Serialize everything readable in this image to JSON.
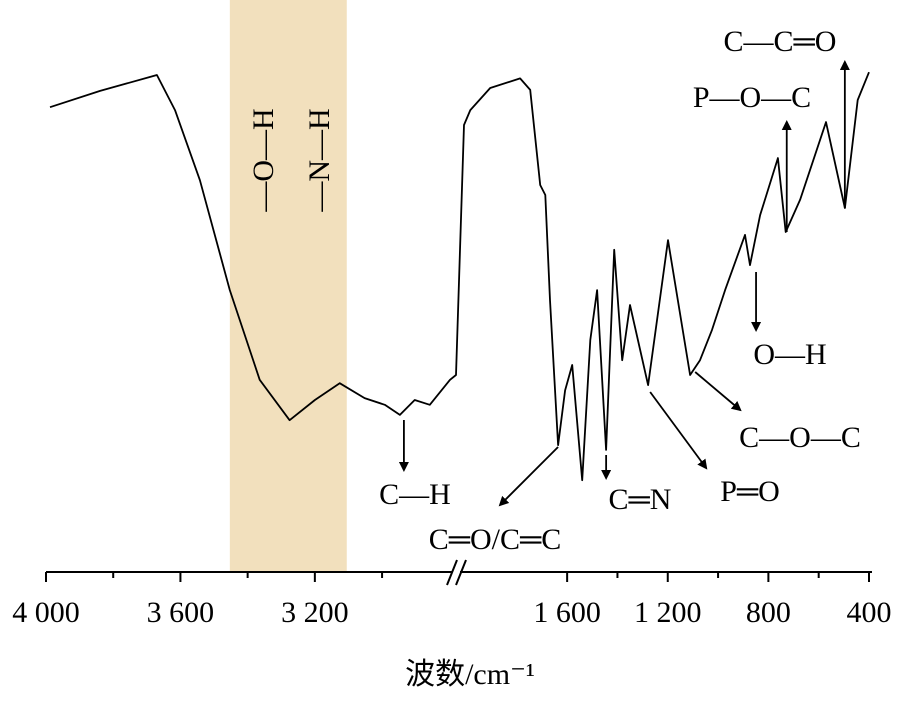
{
  "chart_data": {
    "type": "line",
    "x_label": "波数/cm⁻¹",
    "xlim": [
      4000,
      400
    ],
    "x_break": [
      2780,
      2010
    ],
    "ylim": [
      0,
      100
    ],
    "xticks": [
      {
        "value": 4000,
        "label": "4 000"
      },
      {
        "value": 3600,
        "label": "3 600"
      },
      {
        "value": 3200,
        "label": "3 200"
      },
      {
        "value": 1600,
        "label": "1 600"
      },
      {
        "value": 1200,
        "label": "1 200"
      },
      800,
      400
    ],
    "xminor": [
      3800,
      3400,
      3000,
      1400,
      1000,
      600
    ],
    "highlight": {
      "xrange": [
        3453,
        3105
      ],
      "color": "#f2e0bd",
      "labels": [
        "—O—H",
        "—N—H"
      ]
    },
    "series": [
      {
        "color": "#000000",
        "x": [
          3988,
          3839,
          3691,
          3670,
          3616,
          3542,
          3453,
          3364,
          3275,
          3200,
          3126,
          3052,
          2992,
          2947,
          2903,
          2858,
          2798,
          2780,
          2010,
          1985,
          1906,
          1787,
          1747,
          1707,
          1687,
          1668,
          1636,
          1608,
          1580,
          1540,
          1508,
          1481,
          1445,
          1413,
          1381,
          1350,
          1278,
          1199,
          1111,
          1072,
          1024,
          972,
          893,
          873,
          833,
          762,
          731,
          674,
          571,
          496,
          445,
          400
        ],
        "values": [
          86,
          89.4,
          92.3,
          92.7,
          85.4,
          70.8,
          47.9,
          29.2,
          20.8,
          25,
          28.5,
          25.4,
          24,
          21.9,
          25,
          24,
          29.2,
          30.2,
          82.3,
          85.4,
          90,
          92,
          89.6,
          69.8,
          67.7,
          45.8,
          15.6,
          27,
          32.3,
          8.3,
          37.5,
          47.9,
          14.6,
          56.3,
          33.3,
          44.8,
          28.1,
          58.3,
          30.2,
          33.3,
          39.6,
          47.9,
          59.4,
          53.1,
          63.5,
          75.4,
          60,
          66.7,
          82.9,
          65,
          87.5,
          93.3
        ]
      }
    ],
    "annotations": [
      {
        "text": "C—H",
        "x": 2935
      },
      {
        "text": "C═O/C═C",
        "x": 1636
      },
      {
        "text": "C═N",
        "x": 1445
      },
      {
        "text": "P═O",
        "x": 1270
      },
      {
        "text": "C—O—C",
        "x": 1091
      },
      {
        "text": "O—H",
        "x": 849
      },
      {
        "text": "P—O—C",
        "x": 727
      },
      {
        "text": "C—C═O",
        "x": 496
      }
    ]
  }
}
